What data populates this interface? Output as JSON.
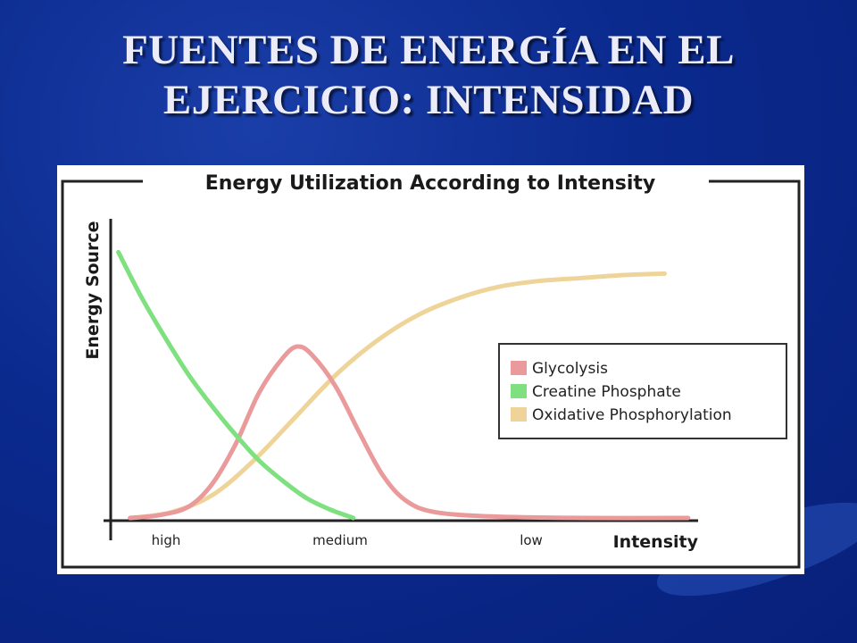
{
  "slide": {
    "title_line1": "FUENTES DE ENERGÍA EN EL",
    "title_line2": "EJERCICIO: INTENSIDAD"
  },
  "chart_data": {
    "type": "line",
    "title": "Energy Utilization According to Intensity",
    "xlabel": "Intensity",
    "ylabel": "Energy Source",
    "x_ticks": [
      "high",
      "medium",
      "low"
    ],
    "x_range": [
      0,
      1
    ],
    "y_range": [
      0,
      1
    ],
    "grid": false,
    "legend_placement": "middle-right",
    "series": [
      {
        "name": "Glycolysis",
        "color": "#ea9a9a",
        "points": [
          [
            0.03,
            0.0
          ],
          [
            0.08,
            0.01
          ],
          [
            0.13,
            0.04
          ],
          [
            0.17,
            0.12
          ],
          [
            0.21,
            0.26
          ],
          [
            0.25,
            0.44
          ],
          [
            0.29,
            0.56
          ],
          [
            0.315,
            0.6
          ],
          [
            0.34,
            0.57
          ],
          [
            0.38,
            0.46
          ],
          [
            0.42,
            0.3
          ],
          [
            0.46,
            0.15
          ],
          [
            0.5,
            0.06
          ],
          [
            0.55,
            0.02
          ],
          [
            0.65,
            0.005
          ],
          [
            0.8,
            0.0
          ],
          [
            0.98,
            0.0
          ]
        ]
      },
      {
        "name": "Creatine Phosphate",
        "color": "#7fe07f",
        "points": [
          [
            0.01,
            0.93
          ],
          [
            0.05,
            0.77
          ],
          [
            0.09,
            0.63
          ],
          [
            0.13,
            0.5
          ],
          [
            0.17,
            0.39
          ],
          [
            0.21,
            0.29
          ],
          [
            0.25,
            0.2
          ],
          [
            0.29,
            0.13
          ],
          [
            0.33,
            0.07
          ],
          [
            0.37,
            0.03
          ],
          [
            0.41,
            0.0
          ]
        ]
      },
      {
        "name": "Oxidative Phosphorylation",
        "color": "#efd49a",
        "points": [
          [
            0.03,
            0.0
          ],
          [
            0.1,
            0.02
          ],
          [
            0.17,
            0.08
          ],
          [
            0.24,
            0.2
          ],
          [
            0.31,
            0.35
          ],
          [
            0.38,
            0.5
          ],
          [
            0.45,
            0.62
          ],
          [
            0.52,
            0.71
          ],
          [
            0.59,
            0.77
          ],
          [
            0.66,
            0.81
          ],
          [
            0.73,
            0.83
          ],
          [
            0.8,
            0.84
          ],
          [
            0.87,
            0.85
          ],
          [
            0.94,
            0.855
          ]
        ]
      }
    ]
  }
}
